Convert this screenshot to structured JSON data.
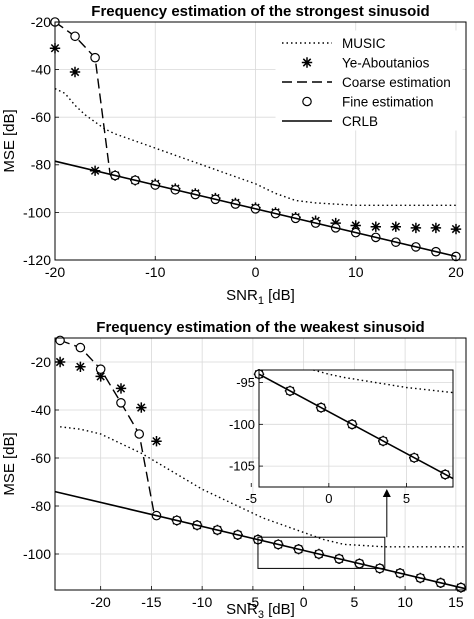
{
  "chart_data": [
    {
      "type": "line",
      "title": "Frequency estimation of the strongest sinusoid",
      "xlabel": "SNR",
      "xlabel_sub": "1",
      "xlabel_unit": " [dB]",
      "ylabel": "MSE [dB]",
      "xlim": [
        -20,
        21
      ],
      "ylim": [
        -120,
        -20
      ],
      "xticks": [
        -20,
        -10,
        0,
        10,
        20
      ],
      "yticks": [
        -20,
        -40,
        -60,
        -80,
        -100,
        -120
      ],
      "grid": true,
      "legend_placement": "top-right",
      "series": [
        {
          "name": "MUSIC",
          "style": "dotted",
          "x": [
            -20,
            -19,
            -18,
            -17,
            -16,
            -15,
            -14,
            -12,
            -10,
            -8,
            -6,
            -4,
            -2,
            0,
            2,
            4,
            6,
            8,
            10,
            12,
            14,
            16,
            18,
            20
          ],
          "y": [
            -48,
            -50,
            -55,
            -59,
            -62,
            -65,
            -67,
            -70,
            -73,
            -76,
            -79,
            -82,
            -85,
            -88,
            -92,
            -95,
            -96,
            -96.5,
            -97,
            -97,
            -97,
            -97,
            -97,
            -97
          ]
        },
        {
          "name": "Ye-Aboutanios",
          "style": "asterisk",
          "x": [
            -20,
            -18,
            -16,
            -14,
            -12,
            -10,
            -8,
            -6,
            -4,
            -2,
            0,
            2,
            4,
            6,
            8,
            10,
            12,
            14,
            16,
            18,
            20
          ],
          "y": [
            -31,
            -41,
            -82.5,
            -84.5,
            -86.5,
            -88,
            -90,
            -92,
            -94,
            -96,
            -98,
            -100,
            -102,
            -103.5,
            -104.5,
            -105.5,
            -106,
            -106,
            -106.5,
            -106.5,
            -107
          ]
        },
        {
          "name": "Coarse estimation",
          "style": "dashed",
          "x": [
            -20,
            -18,
            -16,
            -14.5
          ],
          "y": [
            -20,
            -26,
            -35,
            -84
          ]
        },
        {
          "name": "Fine estimation",
          "style": "circle",
          "x": [
            -20,
            -18,
            -16,
            -14,
            -12,
            -10,
            -8,
            -6,
            -4,
            -2,
            0,
            2,
            4,
            6,
            8,
            10,
            12,
            14,
            16,
            18,
            20
          ],
          "y": [
            -20,
            -26,
            -35,
            -84.5,
            -86.5,
            -88.5,
            -90.5,
            -92.5,
            -94.5,
            -96.5,
            -98.5,
            -100.5,
            -102.5,
            -104.5,
            -106.5,
            -108.5,
            -110.5,
            -112.5,
            -114.5,
            -116.5,
            -118.5
          ]
        },
        {
          "name": "CRLB",
          "style": "solid",
          "x": [
            -20,
            20
          ],
          "y": [
            -78.5,
            -118.5
          ]
        }
      ]
    },
    {
      "type": "line",
      "title": "Frequency estimation of the weakest sinusoid",
      "xlabel": "SNR",
      "xlabel_sub": "3",
      "xlabel_unit": " [dB]",
      "ylabel": "MSE [dB]",
      "xlim": [
        -24.5,
        16
      ],
      "ylim": [
        -115,
        -10
      ],
      "xticks": [
        -20,
        -15,
        -10,
        -5,
        0,
        5,
        10,
        15
      ],
      "yticks": [
        -20,
        -40,
        -60,
        -80,
        -100
      ],
      "grid": true,
      "series": [
        {
          "name": "MUSIC",
          "style": "dotted",
          "x": [
            -24,
            -22,
            -20,
            -18,
            -16,
            -14,
            -12,
            -10,
            -8,
            -6,
            -4,
            -2,
            0,
            2,
            4,
            6,
            8,
            10,
            12,
            14,
            16
          ],
          "y": [
            -47,
            -48,
            -50,
            -54,
            -58,
            -63,
            -68,
            -73,
            -77,
            -81,
            -85,
            -88,
            -91,
            -94,
            -96,
            -96.5,
            -97,
            -97,
            -97,
            -97,
            -97
          ]
        },
        {
          "name": "Ye-Aboutanios",
          "style": "asterisk",
          "x": [
            -24,
            -22,
            -20,
            -18,
            -16,
            -14.5,
            -12.5,
            -10.5,
            -8.5,
            -6.5,
            -4.5,
            -2.5,
            -0.5,
            1.5,
            3.5,
            5.5,
            7.5,
            9.5,
            11.5,
            13.5,
            15.5
          ],
          "y": [
            -20,
            -22,
            -26,
            -31,
            -39,
            -53,
            -86,
            -88,
            -90,
            -92,
            -94,
            -96,
            -98,
            -100,
            -102,
            -104,
            -106,
            -108,
            -110,
            -112,
            -114
          ]
        },
        {
          "name": "Coarse estimation",
          "style": "dashed",
          "x": [
            -24,
            -22,
            -20,
            -18,
            -16.2,
            -14.7
          ],
          "y": [
            -11,
            -14,
            -23,
            -37,
            -50,
            -84
          ]
        },
        {
          "name": "Fine estimation",
          "style": "circle",
          "x": [
            -24,
            -22,
            -20,
            -18,
            -16.2,
            -14.5,
            -12.5,
            -10.5,
            -8.5,
            -6.5,
            -4.5,
            -2.5,
            -0.5,
            1.5,
            3.5,
            5.5,
            7.5,
            9.5,
            11.5,
            13.5,
            15.5
          ],
          "y": [
            -11,
            -14,
            -23,
            -37,
            -50,
            -84,
            -86,
            -88,
            -90,
            -92,
            -94,
            -96,
            -98,
            -100,
            -102,
            -104,
            -106,
            -108,
            -110,
            -112,
            -114
          ]
        },
        {
          "name": "CRLB",
          "style": "solid",
          "x": [
            -24.5,
            16
          ],
          "y": [
            -74,
            -114.5
          ]
        }
      ],
      "zoom_region": {
        "x": [
          -4.5,
          8
        ],
        "y": [
          -106,
          -93
        ]
      }
    },
    {
      "type": "line",
      "xlim": [
        -4.5,
        8
      ],
      "ylim": [
        -107.5,
        -93.5
      ],
      "xticks": [
        -5,
        0,
        5
      ],
      "yticks": [
        -95,
        -100,
        -105
      ],
      "grid": true,
      "series": [
        {
          "name": "MUSIC",
          "style": "dotted",
          "x": [
            -1,
            0,
            1,
            2,
            3,
            4,
            5,
            6,
            7,
            8
          ],
          "y": [
            -93.5,
            -94,
            -94.4,
            -94.7,
            -95,
            -95.3,
            -95.6,
            -95.8,
            -96,
            -96.2
          ]
        },
        {
          "name": "Ye-Aboutanios",
          "style": "asterisk",
          "x": [
            -4.5,
            -2.5,
            -0.5,
            1.5,
            3.5,
            5.5,
            7.5
          ],
          "y": [
            -94,
            -96,
            -98,
            -100,
            -102,
            -104,
            -106
          ]
        },
        {
          "name": "Fine estimation",
          "style": "circle",
          "x": [
            -4.5,
            -2.5,
            -0.5,
            1.5,
            3.5,
            5.5,
            7.5
          ],
          "y": [
            -94,
            -96,
            -98,
            -100,
            -102,
            -104,
            -106
          ]
        },
        {
          "name": "CRLB",
          "style": "solid",
          "x": [
            -4.5,
            8
          ],
          "y": [
            -94,
            -106.5
          ]
        }
      ]
    }
  ]
}
